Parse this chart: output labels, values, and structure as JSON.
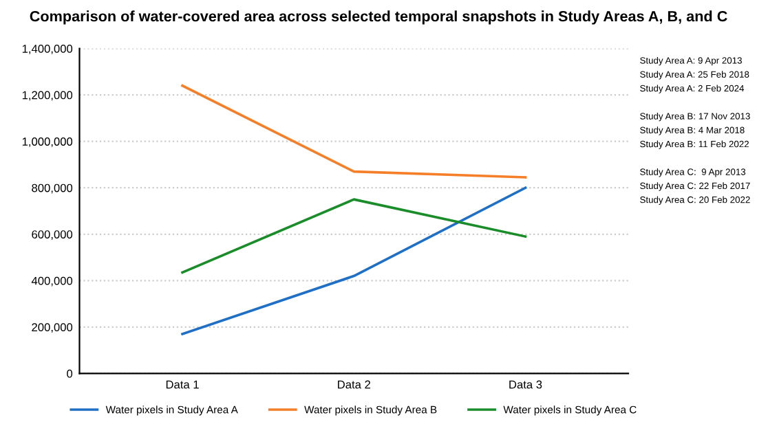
{
  "chart_data": {
    "type": "line",
    "title": "Comparison of water-covered area across selected temporal snapshots in Study Areas A, B, and C",
    "categories": [
      "Data 1",
      "Data 2",
      "Data 3"
    ],
    "series": [
      {
        "name": "Water pixels in Study Area A",
        "color": "#1f6fc5",
        "values": [
          170000,
          420000,
          800000
        ]
      },
      {
        "name": "Water pixels in Study Area B",
        "color": "#f57f28",
        "values": [
          1240000,
          870000,
          845000
        ]
      },
      {
        "name": "Water pixels in Study Area C",
        "color": "#1a8c2a",
        "values": [
          435000,
          750000,
          590000
        ]
      }
    ],
    "ylim": [
      0,
      1400000
    ],
    "yticks": [
      {
        "value": 0,
        "label": "0"
      },
      {
        "value": 200000,
        "label": "200,000"
      },
      {
        "value": 400000,
        "label": "400,000"
      },
      {
        "value": 600000,
        "label": "600,000"
      },
      {
        "value": 800000,
        "label": "800,000"
      },
      {
        "value": 1000000,
        "label": "1,000,000"
      },
      {
        "value": 1200000,
        "label": "1,200,000"
      },
      {
        "value": 1400000,
        "label": "1,400,000"
      }
    ],
    "grid": "y",
    "legend": "bottom",
    "marker": "none",
    "line_style": "solid",
    "annotations": [
      "Study Area A: 9 Apr 2013",
      "Study Area A: 25 Feb 2018",
      "Study Area A: 2 Feb 2024",
      "Study Area B: 17 Nov 2013",
      "Study Area B: 4 Mar 2018",
      "Study Area B: 11 Feb 2022",
      "Study Area C:  9 Apr 2013",
      "Study Area C: 22 Feb 2017",
      "Study Area C: 20 Feb 2022"
    ]
  }
}
